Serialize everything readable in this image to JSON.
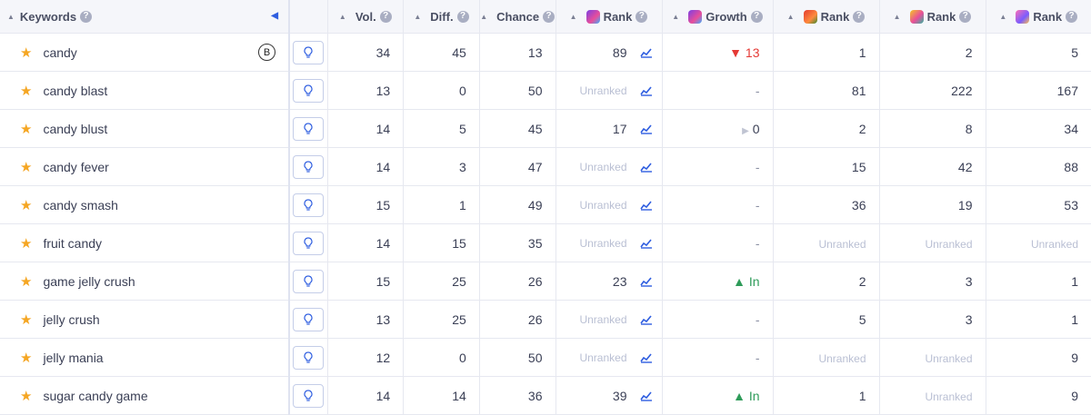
{
  "header": {
    "keywords": "Keywords",
    "vol": "Vol.",
    "diff": "Diff.",
    "chance": "Chance",
    "rank": "Rank",
    "growth": "Growth",
    "rank2": "Rank",
    "rank3": "Rank",
    "rank4": "Rank",
    "help": "?"
  },
  "badge": "B",
  "rows": [
    {
      "keyword": "candy",
      "vol": "34",
      "diff": "45",
      "chance": "13",
      "rank": "89",
      "growth": "13",
      "growth_dir": "down",
      "r2": "1",
      "r3": "2",
      "r4": "5"
    },
    {
      "keyword": "candy blast",
      "vol": "13",
      "diff": "0",
      "chance": "50",
      "rank": "Unranked",
      "growth": "-",
      "growth_dir": "none",
      "r2": "81",
      "r3": "222",
      "r4": "167"
    },
    {
      "keyword": "candy blust",
      "vol": "14",
      "diff": "5",
      "chance": "45",
      "rank": "17",
      "growth": "0",
      "growth_dir": "flat",
      "r2": "2",
      "r3": "8",
      "r4": "34"
    },
    {
      "keyword": "candy fever",
      "vol": "14",
      "diff": "3",
      "chance": "47",
      "rank": "Unranked",
      "growth": "-",
      "growth_dir": "none",
      "r2": "15",
      "r3": "42",
      "r4": "88"
    },
    {
      "keyword": "candy smash",
      "vol": "15",
      "diff": "1",
      "chance": "49",
      "rank": "Unranked",
      "growth": "-",
      "growth_dir": "none",
      "r2": "36",
      "r3": "19",
      "r4": "53"
    },
    {
      "keyword": "fruit candy",
      "vol": "14",
      "diff": "15",
      "chance": "35",
      "rank": "Unranked",
      "growth": "-",
      "growth_dir": "none",
      "r2": "Unranked",
      "r3": "Unranked",
      "r4": "Unranked"
    },
    {
      "keyword": "game jelly crush",
      "vol": "15",
      "diff": "25",
      "chance": "26",
      "rank": "23",
      "growth": "In",
      "growth_dir": "up",
      "r2": "2",
      "r3": "3",
      "r4": "1"
    },
    {
      "keyword": "jelly crush",
      "vol": "13",
      "diff": "25",
      "chance": "26",
      "rank": "Unranked",
      "growth": "-",
      "growth_dir": "none",
      "r2": "5",
      "r3": "3",
      "r4": "1"
    },
    {
      "keyword": "jelly mania",
      "vol": "12",
      "diff": "0",
      "chance": "50",
      "rank": "Unranked",
      "growth": "-",
      "growth_dir": "none",
      "r2": "Unranked",
      "r3": "Unranked",
      "r4": "9"
    },
    {
      "keyword": "sugar candy game",
      "vol": "14",
      "diff": "14",
      "chance": "36",
      "rank": "39",
      "growth": "In",
      "growth_dir": "up",
      "r2": "1",
      "r3": "Unranked",
      "r4": "9"
    }
  ]
}
